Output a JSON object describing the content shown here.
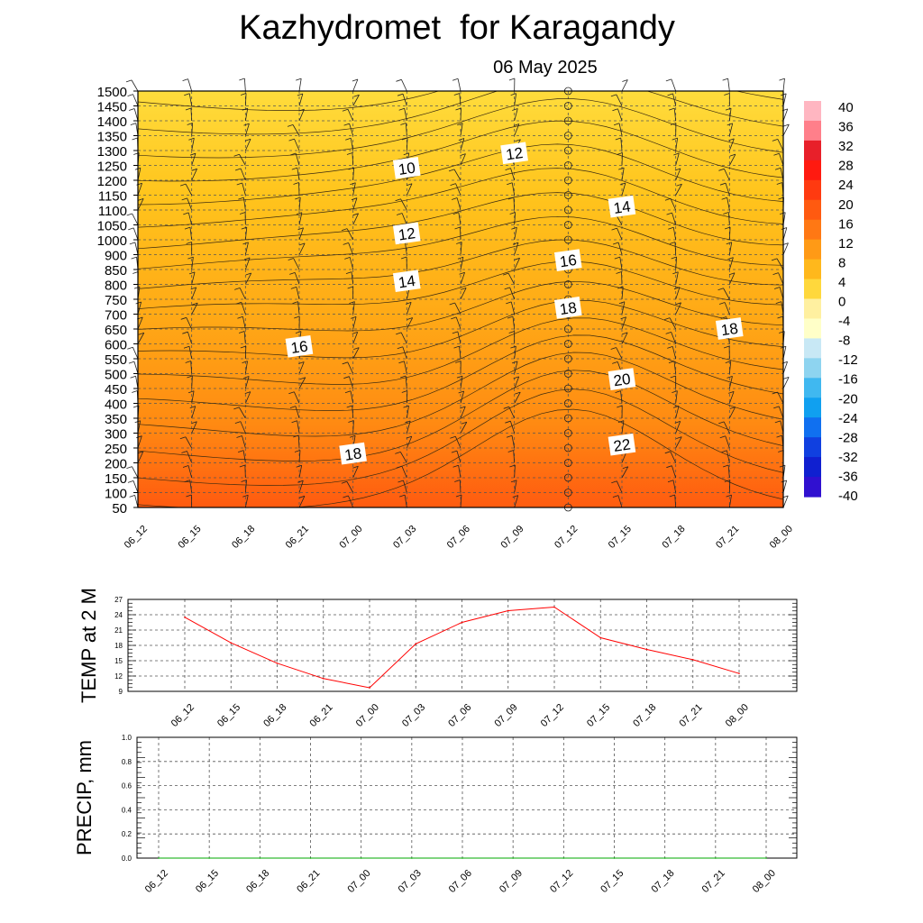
{
  "title": "Kazhydromet  for Karagandy",
  "subtitle": "06 May 2025",
  "chart_data": [
    {
      "type": "heatmap",
      "name": "vertical-cross-section",
      "x_labels": [
        "06_12",
        "06_15",
        "06_18",
        "06_21",
        "07_00",
        "07_03",
        "07_06",
        "07_09",
        "07_12",
        "07_15",
        "07_18",
        "07_21",
        "08_00"
      ],
      "y_labels": [
        "1500",
        "1450",
        "1400",
        "1350",
        "1300",
        "1250",
        "1200",
        "1150",
        "1100",
        "1050",
        "1000",
        "900",
        "850",
        "800",
        "750",
        "700",
        "650",
        "600",
        "550",
        "500",
        "450",
        "400",
        "350",
        "300",
        "250",
        "200",
        "150",
        "100",
        "50"
      ],
      "ylim": [
        50,
        1500
      ],
      "contour_labels": [
        {
          "text": "10",
          "time": "07_03",
          "level": 1240
        },
        {
          "text": "12",
          "time": "07_09",
          "level": 1290
        },
        {
          "text": "14",
          "time": "07_15",
          "level": 1110
        },
        {
          "text": "12",
          "time": "07_03",
          "level": 1020
        },
        {
          "text": "16",
          "time": "07_12",
          "level": 880
        },
        {
          "text": "14",
          "time": "07_03",
          "level": 810
        },
        {
          "text": "18",
          "time": "07_12",
          "level": 720
        },
        {
          "text": "16",
          "time": "06_21",
          "level": 590
        },
        {
          "text": "18",
          "time": "07_21",
          "level": 650
        },
        {
          "text": "20",
          "time": "07_15",
          "level": 480
        },
        {
          "text": "22",
          "time": "07_15",
          "level": 260
        },
        {
          "text": "18",
          "time": "07_00",
          "level": 230
        }
      ],
      "colorbar": {
        "labels": [
          "40",
          "36",
          "32",
          "28",
          "24",
          "20",
          "16",
          "12",
          "8",
          "4",
          "0",
          "-4",
          "-8",
          "-12",
          "-16",
          "-20",
          "-24",
          "-28",
          "-32",
          "-36",
          "-40"
        ],
        "range": [
          -40,
          40
        ]
      }
    },
    {
      "type": "line",
      "name": "temp-2m",
      "ylabel": "TEMP at 2 M",
      "categories": [
        "06_12",
        "06_15",
        "06_18",
        "06_21",
        "07_00",
        "07_03",
        "07_06",
        "07_09",
        "07_12",
        "07_15",
        "07_18",
        "07_21",
        "08_00"
      ],
      "values": [
        23.5,
        18.5,
        14.5,
        11.5,
        9.7,
        18.3,
        22.5,
        24.8,
        25.5,
        19.5,
        17.2,
        15.2,
        12.5
      ],
      "y_ticks": [
        "27",
        "24",
        "21",
        "18",
        "15",
        "12",
        "9"
      ],
      "ylim": [
        9,
        27
      ],
      "color": "#ff0000"
    },
    {
      "type": "line",
      "name": "precip",
      "ylabel": "PRECIP, mm",
      "categories": [
        "06_12",
        "06_15",
        "06_18",
        "06_21",
        "07_00",
        "07_03",
        "07_06",
        "07_09",
        "07_12",
        "07_15",
        "07_18",
        "07_21",
        "08_00"
      ],
      "values": [
        0,
        0,
        0,
        0,
        0,
        0,
        0,
        0,
        0,
        0,
        0,
        0,
        0
      ],
      "y_ticks": [
        "1.0",
        "0.8",
        "0.6",
        "0.4",
        "0.2",
        "0.0"
      ],
      "ylim": [
        0,
        1
      ],
      "color": "#00aa00"
    }
  ]
}
